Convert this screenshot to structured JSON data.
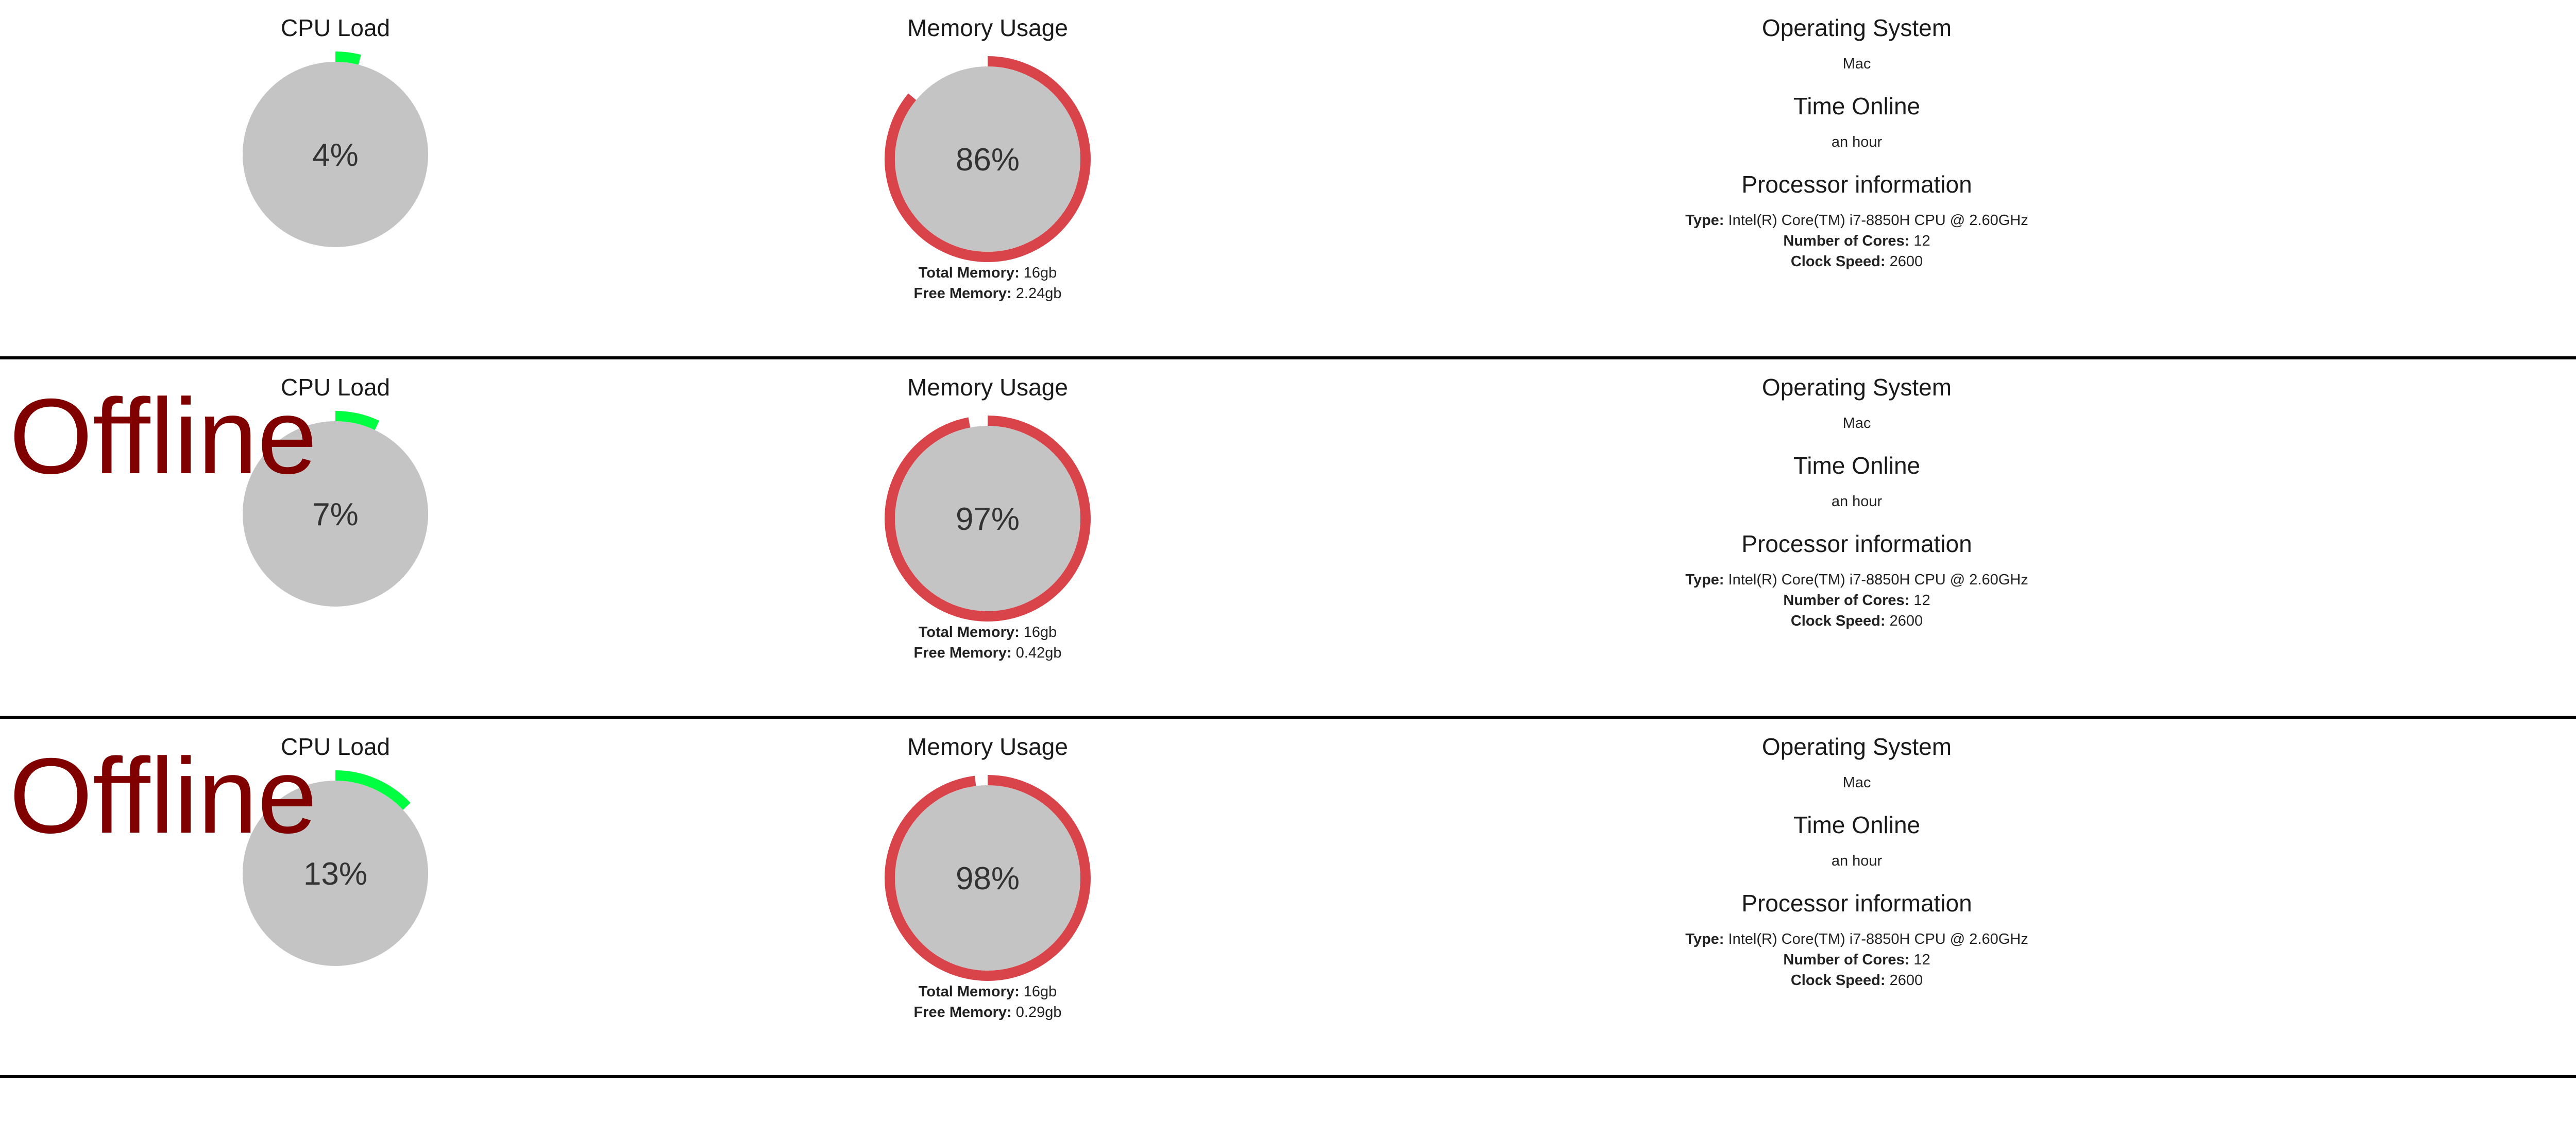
{
  "colors": {
    "cpu_arc": "#00ff40",
    "memory_arc": "#d9444a",
    "gauge_fill": "#c4c4c4",
    "offline_text": "#800000"
  },
  "labels": {
    "cpu_load": "CPU Load",
    "memory_usage": "Memory Usage",
    "operating_system": "Operating System",
    "time_online": "Time Online",
    "processor_information": "Processor information",
    "total_memory": "Total Memory:",
    "free_memory": "Free Memory:",
    "type": "Type:",
    "number_of_cores": "Number of Cores:",
    "clock_speed": "Clock Speed:"
  },
  "machines": [
    {
      "offline_label": "",
      "cpu": {
        "percent": 4,
        "label": "4%"
      },
      "memory": {
        "percent": 86,
        "label": "86%",
        "total": "16gb",
        "free": "2.24gb"
      },
      "os": "Mac",
      "uptime": "an hour",
      "processor": {
        "type": "Intel(R) Core(TM) i7-8850H CPU @ 2.60GHz",
        "cores": "12",
        "clock": "2600"
      }
    },
    {
      "offline_label": "Offline",
      "cpu": {
        "percent": 7,
        "label": "7%"
      },
      "memory": {
        "percent": 97,
        "label": "97%",
        "total": "16gb",
        "free": "0.42gb"
      },
      "os": "Mac",
      "uptime": "an hour",
      "processor": {
        "type": "Intel(R) Core(TM) i7-8850H CPU @ 2.60GHz",
        "cores": "12",
        "clock": "2600"
      }
    },
    {
      "offline_label": "Offline",
      "cpu": {
        "percent": 13,
        "label": "13%"
      },
      "memory": {
        "percent": 98,
        "label": "98%",
        "total": "16gb",
        "free": "0.29gb"
      },
      "os": "Mac",
      "uptime": "an hour",
      "processor": {
        "type": "Intel(R) Core(TM) i7-8850H CPU @ 2.60GHz",
        "cores": "12",
        "clock": "2600"
      }
    }
  ]
}
